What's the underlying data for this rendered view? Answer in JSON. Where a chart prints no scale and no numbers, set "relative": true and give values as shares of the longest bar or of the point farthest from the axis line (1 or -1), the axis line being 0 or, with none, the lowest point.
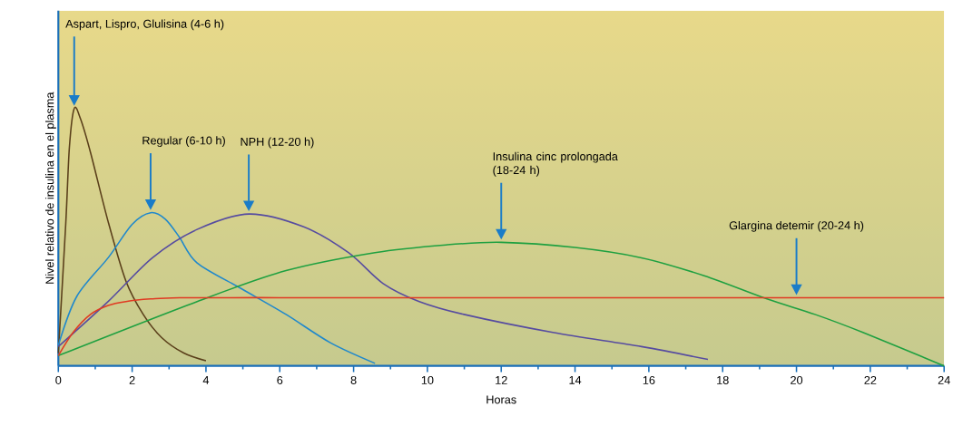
{
  "chart_data": {
    "type": "line",
    "relative": true,
    "xlabel": "Horas",
    "ylabel": "Nivel relativo de insulina en el plasma",
    "xlim": [
      0,
      24
    ],
    "xticks": [
      0,
      {
        "value": 1,
        "label": null
      },
      2,
      {
        "value": 3,
        "label": null
      },
      4,
      {
        "value": 5,
        "label": null
      },
      6,
      {
        "value": 7,
        "label": null
      },
      8,
      {
        "value": 9,
        "label": null
      },
      10,
      {
        "value": 11,
        "label": null
      },
      12,
      {
        "value": 13,
        "label": null
      },
      14,
      {
        "value": 15,
        "label": null
      },
      16,
      {
        "value": 17,
        "label": null
      },
      18,
      {
        "value": 19,
        "label": null
      },
      20,
      {
        "value": 21,
        "label": null
      },
      22,
      {
        "value": 23,
        "label": null
      },
      24
    ],
    "grid": false,
    "marker": "none",
    "line_style": "solid",
    "series": [
      {
        "color": "#5a3f1a",
        "x": [
          0,
          0.2,
          0.3,
          0.43,
          0.6,
          0.87,
          1.35,
          1.83,
          2.3,
          2.8,
          3.4,
          4
        ],
        "values": [
          0.05,
          0.55,
          0.85,
          1,
          0.96,
          0.83,
          0.56,
          0.33,
          0.2,
          0.11,
          0.05,
          0.02
        ]
      },
      {
        "color": "#1f88cc",
        "x": [
          0,
          0.5,
          1.35,
          2,
          2.5,
          2.9,
          3.28,
          3.76,
          4.96,
          6.17,
          7.37,
          8.58
        ],
        "values": [
          0.08,
          0.27,
          0.42,
          0.55,
          0.595,
          0.57,
          0.5,
          0.4,
          0.3,
          0.2,
          0.09,
          0.01
        ]
      },
      {
        "color": "#564ba0",
        "x": [
          0,
          1.35,
          2.55,
          3.76,
          5.16,
          6.65,
          7.86,
          8.8,
          9.78,
          10.99,
          13.4,
          15.8,
          17.6
        ],
        "values": [
          0.075,
          0.25,
          0.42,
          0.53,
          0.59,
          0.54,
          0.44,
          0.32,
          0.25,
          0.2,
          0.13,
          0.075,
          0.025
        ]
      },
      {
        "color": "#1ea040",
        "x": [
          0,
          3.76,
          6.17,
          8.58,
          10.5,
          12,
          14,
          15.8,
          17.5,
          19.2,
          20.5,
          21.8,
          24
        ],
        "values": [
          0.04,
          0.25,
          0.37,
          0.44,
          0.47,
          0.48,
          0.46,
          0.42,
          0.35,
          0.26,
          0.2,
          0.13,
          0
        ]
      },
      {
        "color": "#e03a22",
        "x": [
          0,
          0.4,
          0.87,
          1.35,
          1.83,
          2.5,
          3.28,
          6,
          10,
          15,
          20,
          24
        ],
        "values": [
          0.04,
          0.13,
          0.2,
          0.235,
          0.25,
          0.26,
          0.265,
          0.265,
          0.265,
          0.265,
          0.265,
          0.265
        ]
      }
    ],
    "annotations": [
      "Aspart, Lispro, Glulisina (4-6 h)",
      "Regular (6-10 h)",
      "NPH (12-20 h)",
      "Insulina cinc prolongada (18-24 h)",
      "Glargina detemir (20-24 h)"
    ]
  }
}
